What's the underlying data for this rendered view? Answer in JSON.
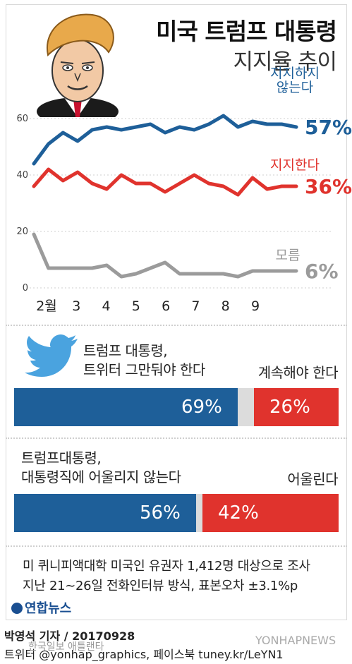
{
  "title": "미국 트럼프 대통령",
  "subtitle": "지지율 추이",
  "chart_data": {
    "type": "line",
    "x_tick_labels": [
      "2월",
      "3",
      "4",
      "5",
      "6",
      "7",
      "8",
      "9"
    ],
    "y_ticks": [
      0,
      20,
      40,
      60
    ],
    "ylim": [
      0,
      64
    ],
    "series": [
      {
        "name": "지지하지\n않는다",
        "color": "#1e5f99",
        "end_label": "57%",
        "values": [
          44,
          51,
          55,
          52,
          56,
          57,
          56,
          57,
          58,
          55,
          57,
          56,
          58,
          61,
          57,
          59,
          58,
          58,
          57
        ]
      },
      {
        "name": "지지한다",
        "color": "#e0332d",
        "end_label": "36%",
        "values": [
          36,
          42,
          38,
          41,
          37,
          35,
          40,
          37,
          37,
          34,
          37,
          40,
          37,
          36,
          33,
          39,
          35,
          36,
          36
        ]
      },
      {
        "name": "모름",
        "color": "#9b9b9b",
        "end_label": "6%",
        "values": [
          19,
          7,
          7,
          7,
          7,
          8,
          4,
          5,
          7,
          9,
          5,
          5,
          5,
          5,
          4,
          6,
          6,
          6,
          6
        ]
      }
    ]
  },
  "poll_twitter": {
    "question_line1": "트럼프 대통령,",
    "question_line2": "트위터 그만둬야 한다",
    "other_label": "계속해야 한다",
    "yes_value": 69,
    "yes_label": "69%",
    "no_value": 26,
    "no_label": "26%",
    "colors": {
      "yes": "#1e5f99",
      "no": "#e0332d",
      "neutral": "#dcdcdc"
    }
  },
  "poll_fit": {
    "question_line1": "트럼프대통령,",
    "question_line2": "대통령직에 어울리지 않는다",
    "other_label": "어울린다",
    "yes_value": 56,
    "yes_label": "56%",
    "no_value": 42,
    "no_label": "42%",
    "colors": {
      "yes": "#1e5f99",
      "no": "#e0332d",
      "neutral": "#dcdcdc"
    }
  },
  "note_line1": "미 퀴니피액대학 미국인 유권자 1,412명 대상으로 조사",
  "note_line2": "지난 21∼26일 전화인터뷰 방식, 표본오차 ±3.1%p",
  "logo_text": "연합뉴스",
  "credit_line1": "박영석 기자 / 20170928",
  "credit_line2": "트위터 @yonhap_graphics, 페이스북 tuney.kr/LeYN1",
  "watermark_left": "한국일보 애틀랜타",
  "watermark_right": "YONHAPNEWS"
}
